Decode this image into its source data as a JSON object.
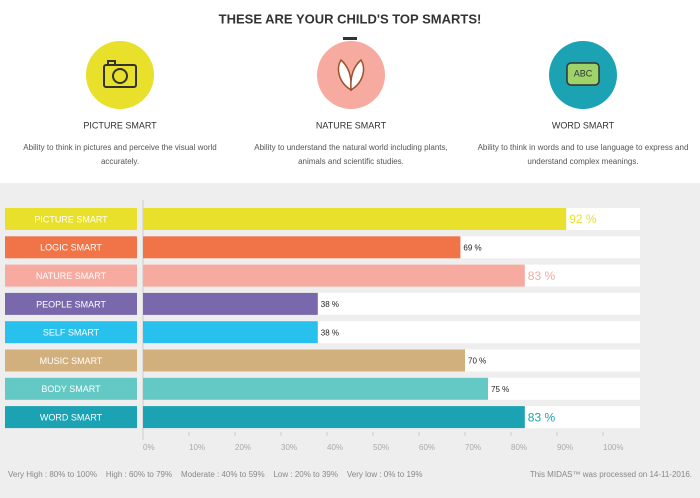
{
  "header": {
    "title": "THESE ARE YOUR CHILD'S TOP SMARTS!"
  },
  "cards": [
    {
      "name": "PICTURE SMART",
      "description": [
        "Ability to think in pictures and perceive the visual world",
        "accurately."
      ],
      "color": "#e8e02a"
    },
    {
      "name": "NATURE SMART",
      "description": [
        "Ability to understand the natural world including plants,",
        "animals and scientific studies."
      ],
      "color": "#f7aaa0"
    },
    {
      "name": "WORD SMART",
      "description": [
        "Ability to think in words and to use language to express and",
        "understand complex meanings."
      ],
      "color": "#1ba3b3"
    }
  ],
  "chart_data": {
    "type": "bar",
    "orientation": "horizontal",
    "categories": [
      "PICTURE SMART",
      "LOGIC SMART",
      "NATURE SMART",
      "PEOPLE SMART",
      "SELF SMART",
      "MUSIC SMART",
      "BODY SMART",
      "WORD SMART"
    ],
    "values": [
      92,
      69,
      83,
      38,
      38,
      70,
      75,
      83
    ],
    "value_labels": [
      "92 %",
      "69 %",
      "83 %",
      "38 %",
      "38 %",
      "70 %",
      "75 %",
      "83 %"
    ],
    "colors": [
      "#e8e02a",
      "#f07448",
      "#f7aaa0",
      "#7a68ad",
      "#28c1ee",
      "#d2b07e",
      "#64c8c4",
      "#1ba3b3"
    ],
    "xlim": [
      0,
      100
    ],
    "xticks": [
      {
        "value": 0,
        "label": "0%"
      },
      {
        "value": 10,
        "label": "10%"
      },
      {
        "value": 20,
        "label": "20%"
      },
      {
        "value": 30,
        "label": "30%"
      },
      {
        "value": 40,
        "label": "40%"
      },
      {
        "value": 50,
        "label": "50%"
      },
      {
        "value": 60,
        "label": "60%"
      },
      {
        "value": 70,
        "label": "70%"
      },
      {
        "value": 80,
        "label": "80%"
      },
      {
        "value": 90,
        "label": "90%"
      },
      {
        "value": 100,
        "label": "100%"
      }
    ]
  },
  "footer": {
    "scale": "Very High : 80% to 100%    High : 60% to 79%    Moderate : 40% to 59%    Low : 20% to 39%    Very low : 0% to 19%",
    "note": "This MIDAS™ was processed on 14-11-2016."
  }
}
